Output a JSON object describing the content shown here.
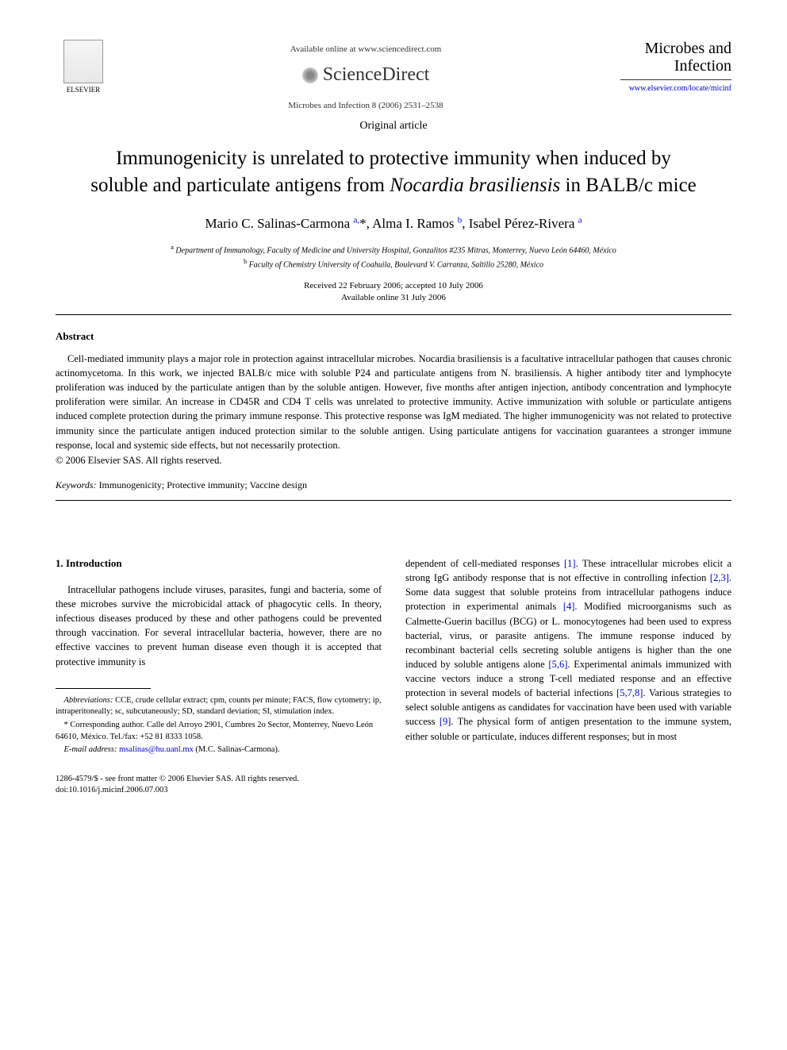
{
  "header": {
    "available_online": "Available online at www.sciencedirect.com",
    "sciencedirect": "ScienceDirect",
    "journal_ref": "Microbes and Infection 8 (2006) 2531–2538",
    "elsevier_label": "ELSEVIER",
    "journal_name_line1": "Microbes and",
    "journal_name_line2": "Infection",
    "journal_link": "www.elsevier.com/locate/micinf"
  },
  "article": {
    "type": "Original article",
    "title_pre": "Immunogenicity is unrelated to protective immunity when induced by soluble and particulate antigens from ",
    "title_italic": "Nocardia brasiliensis",
    "title_post": " in BALB/c mice",
    "authors_html": "Mario C. Salinas-Carmona <sup>a,</sup>*, Alma I. Ramos <sup>b</sup>, Isabel Pérez-Rivera <sup>a</sup>",
    "authors": {
      "a1_name": "Mario C. Salinas-Carmona",
      "a1_sup": "a,",
      "a1_star": "*",
      "a2_name": "Alma I. Ramos",
      "a2_sup": "b",
      "a3_name": "Isabel Pérez-Rivera",
      "a3_sup": "a"
    },
    "affiliations": {
      "a_sup": "a",
      "a_text": " Department of Immunology, Faculty of Medicine and University Hospital, Gonzalitos #235 Mitras, Monterrey, Nuevo León 64460, México",
      "b_sup": "b",
      "b_text": " Faculty of Chemistry University of Coahuila, Boulevard V. Carranza, Saltillo 25280, México"
    },
    "dates": {
      "received": "Received 22 February 2006; accepted 10 July 2006",
      "online": "Available online 31 July 2006"
    }
  },
  "abstract": {
    "heading": "Abstract",
    "text": "Cell-mediated immunity plays a major role in protection against intracellular microbes. Nocardia brasiliensis is a facultative intracellular pathogen that causes chronic actinomycetoma. In this work, we injected BALB/c mice with soluble P24 and particulate antigens from N. brasiliensis. A higher antibody titer and lymphocyte proliferation was induced by the particulate antigen than by the soluble antigen. However, five months after antigen injection, antibody concentration and lymphocyte proliferation were similar. An increase in CD45R and CD4 T cells was unrelated to protective immunity. Active immunization with soluble or particulate antigens induced complete protection during the primary immune response. This protective response was IgM mediated. The higher immunogenicity was not related to protective immunity since the particulate antigen induced protection similar to the soluble antigen. Using particulate antigens for vaccination guarantees a stronger immune response, local and systemic side effects, but not necessarily protection.",
    "copyright": "© 2006 Elsevier SAS. All rights reserved.",
    "keywords_label": "Keywords:",
    "keywords": " Immunogenicity; Protective immunity; Vaccine design"
  },
  "body": {
    "section_heading": "1. Introduction",
    "col1_p1": "Intracellular pathogens include viruses, parasites, fungi and bacteria, some of these microbes survive the microbicidal attack of phagocytic cells. In theory, infectious diseases produced by these and other pathogens could be prevented through vaccination. For several intracellular bacteria, however, there are no effective vaccines to prevent human disease even though it is accepted that protective immunity is",
    "col2_p1_a": "dependent of cell-mediated responses ",
    "ref1": "[1]",
    "col2_p1_b": ". These intracellular microbes elicit a strong IgG antibody response that is not effective in controlling infection ",
    "ref23": "[2,3]",
    "col2_p1_c": ". Some data suggest that soluble proteins from intracellular pathogens induce protection in experimental animals ",
    "ref4": "[4]",
    "col2_p1_d": ". Modified microorganisms such as Calmette-Guerin bacillus (BCG) or L. monocytogenes had been used to express bacterial, virus, or parasite antigens. The immune response induced by recombinant bacterial cells secreting soluble antigens is higher than the one induced by soluble antigens alone ",
    "ref56": "[5,6]",
    "col2_p1_e": ". Experimental animals immunized with vaccine vectors induce a strong T-cell mediated response and an effective protection in several models of bacterial infections ",
    "ref578": "[5,7,8]",
    "col2_p1_f": ". Various strategies to select soluble antigens as candidates for vaccination have been used with variable success ",
    "ref9": "[9]",
    "col2_p1_g": ". The physical form of antigen presentation to the immune system, either soluble or particulate, induces different responses; but in most"
  },
  "footnotes": {
    "abbrev_label": "Abbreviations:",
    "abbrev_text": " CCE, crude cellular extract; cpm, counts per minute; FACS, flow cytometry; ip, intraperitoneally; sc, subcutaneously; SD, standard deviation; SI, stimulation index.",
    "corr_label": "* Corresponding author.",
    "corr_text": " Calle del Arroyo 2901, Cumbres 2o Sector, Monterrey, Nuevo León 64610, México. Tel./fax: +52 81 8333 1058.",
    "email_label": "E-mail address:",
    "email": " msalinas@hu.uanl.mx",
    "email_suffix": " (M.C. Salinas-Carmona)."
  },
  "footer": {
    "issn": "1286-4579/$ - see front matter © 2006 Elsevier SAS. All rights reserved.",
    "doi": "doi:10.1016/j.micinf.2006.07.003"
  },
  "colors": {
    "link": "#0000cc",
    "text": "#000000",
    "background": "#ffffff"
  }
}
